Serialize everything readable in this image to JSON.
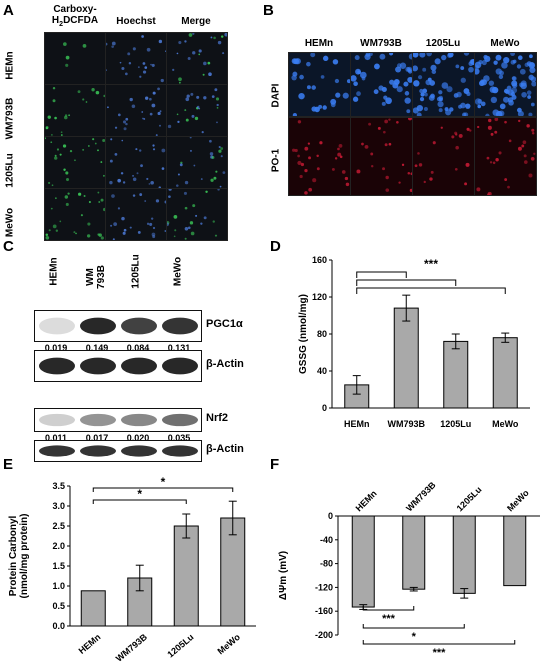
{
  "panelA": {
    "label": "A",
    "headers": [
      "Carboxy-\nH2DCFDA",
      "Hoechst",
      "Merge"
    ],
    "rows": [
      "HEMn",
      "WM793B",
      "1205Lu",
      "MeWo"
    ]
  },
  "panelB": {
    "label": "B",
    "headers": [
      "HEMn",
      "WM793B",
      "1205Lu",
      "MeWo"
    ],
    "rows": [
      "DAPI",
      "PO-1"
    ]
  },
  "panelC": {
    "label": "C",
    "lanes": [
      "HEMn",
      "WM\n793B",
      "1205Lu",
      "MeWo"
    ],
    "blots": [
      {
        "name": "PGC1α",
        "values": [
          "0.019",
          "0.149",
          "0.084",
          "0.131"
        ]
      },
      {
        "name": "β-Actin",
        "values": []
      },
      {
        "name": "Nrf2",
        "values": [
          "0.011",
          "0.017",
          "0.020",
          "0.035"
        ]
      },
      {
        "name": "β-Actin",
        "values": []
      }
    ]
  },
  "chart_data": [
    {
      "panel": "D",
      "type": "bar",
      "categories": [
        "HEMn",
        "WM793B",
        "1205Lu",
        "MeWo"
      ],
      "values": [
        25,
        108,
        72,
        76
      ],
      "errors": [
        10,
        14,
        8,
        5
      ],
      "ylabel": "GSSG (nmol/mg)",
      "ylim": [
        0,
        160
      ],
      "yticks": [
        0,
        40,
        80,
        120,
        160
      ],
      "significance": "***"
    },
    {
      "panel": "E",
      "type": "bar",
      "categories": [
        "HEMn",
        "WM793B",
        "1205Lu",
        "MeWo"
      ],
      "values": [
        0.88,
        1.2,
        2.5,
        2.7
      ],
      "errors": [
        0,
        0.32,
        0.3,
        0.42
      ],
      "ylabel": "Protein Carbonyl\n(nmol/mg protein)",
      "ylim": [
        0,
        3.5
      ],
      "yticks": [
        0,
        0.5,
        1.0,
        1.5,
        2.0,
        2.5,
        3.0,
        3.5
      ],
      "significance": [
        "*",
        "*"
      ]
    },
    {
      "panel": "F",
      "type": "bar",
      "categories": [
        "HEMn",
        "WM793B",
        "1205Lu",
        "MeWo"
      ],
      "values": [
        -153,
        -123,
        -130,
        -117
      ],
      "errors": [
        4,
        3,
        8,
        0
      ],
      "ylabel": "ΔΨm (mV)",
      "ylim": [
        -200,
        0
      ],
      "yticks": [
        0,
        -40,
        -80,
        -120,
        -160,
        -200
      ],
      "significance": [
        "***",
        "*",
        "***"
      ]
    }
  ],
  "labels": {
    "D": "D",
    "E": "E",
    "F": "F"
  }
}
